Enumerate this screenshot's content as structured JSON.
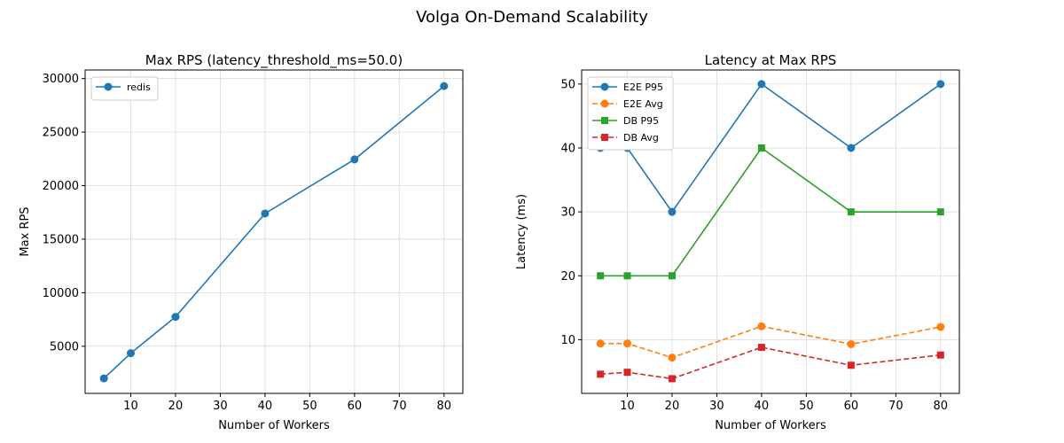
{
  "suptitle": "Volga On-Demand Scalability",
  "chart_data": [
    {
      "type": "line",
      "title": "Max RPS (latency_threshold_ms=50.0)",
      "xlabel": "Number of Workers",
      "ylabel": "Max RPS",
      "xlim": [
        -0.2,
        84.2
      ],
      "ylim": [
        600,
        30800
      ],
      "xticks": [
        10,
        20,
        30,
        40,
        50,
        60,
        70,
        80
      ],
      "yticks": [
        5000,
        10000,
        15000,
        20000,
        25000,
        30000
      ],
      "grid": true,
      "legend_position": "top-left",
      "x": [
        4,
        10,
        20,
        40,
        60,
        80
      ],
      "series": [
        {
          "name": "redis",
          "color": "#1f77b4",
          "marker": "circle",
          "dashed": false,
          "values": [
            2000,
            4350,
            7750,
            17400,
            22450,
            29300
          ]
        }
      ]
    },
    {
      "type": "line",
      "title": "Latency at Max RPS",
      "xlabel": "Number of Workers",
      "ylabel": "Latency (ms)",
      "xlim": [
        -0.2,
        84.2
      ],
      "ylim": [
        1.6,
        52.2
      ],
      "xticks": [
        10,
        20,
        30,
        40,
        50,
        60,
        70,
        80
      ],
      "yticks": [
        10,
        20,
        30,
        40,
        50
      ],
      "grid": true,
      "legend_position": "top-left",
      "x": [
        4,
        10,
        20,
        40,
        60,
        80
      ],
      "series": [
        {
          "name": "E2E P95",
          "color": "#1f77b4",
          "marker": "circle",
          "dashed": false,
          "values": [
            40,
            40,
            30,
            50,
            40,
            50
          ]
        },
        {
          "name": "E2E Avg",
          "color": "#ff7f0e",
          "marker": "circle",
          "dashed": true,
          "values": [
            9.4,
            9.4,
            7.2,
            12.1,
            9.3,
            12.0
          ]
        },
        {
          "name": "DB P95",
          "color": "#2ca02c",
          "marker": "square",
          "dashed": false,
          "values": [
            20,
            20,
            20,
            40,
            30,
            30
          ]
        },
        {
          "name": "DB Avg",
          "color": "#d62728",
          "marker": "square",
          "dashed": true,
          "values": [
            4.6,
            4.9,
            3.9,
            8.8,
            6.0,
            7.6
          ]
        }
      ]
    }
  ]
}
